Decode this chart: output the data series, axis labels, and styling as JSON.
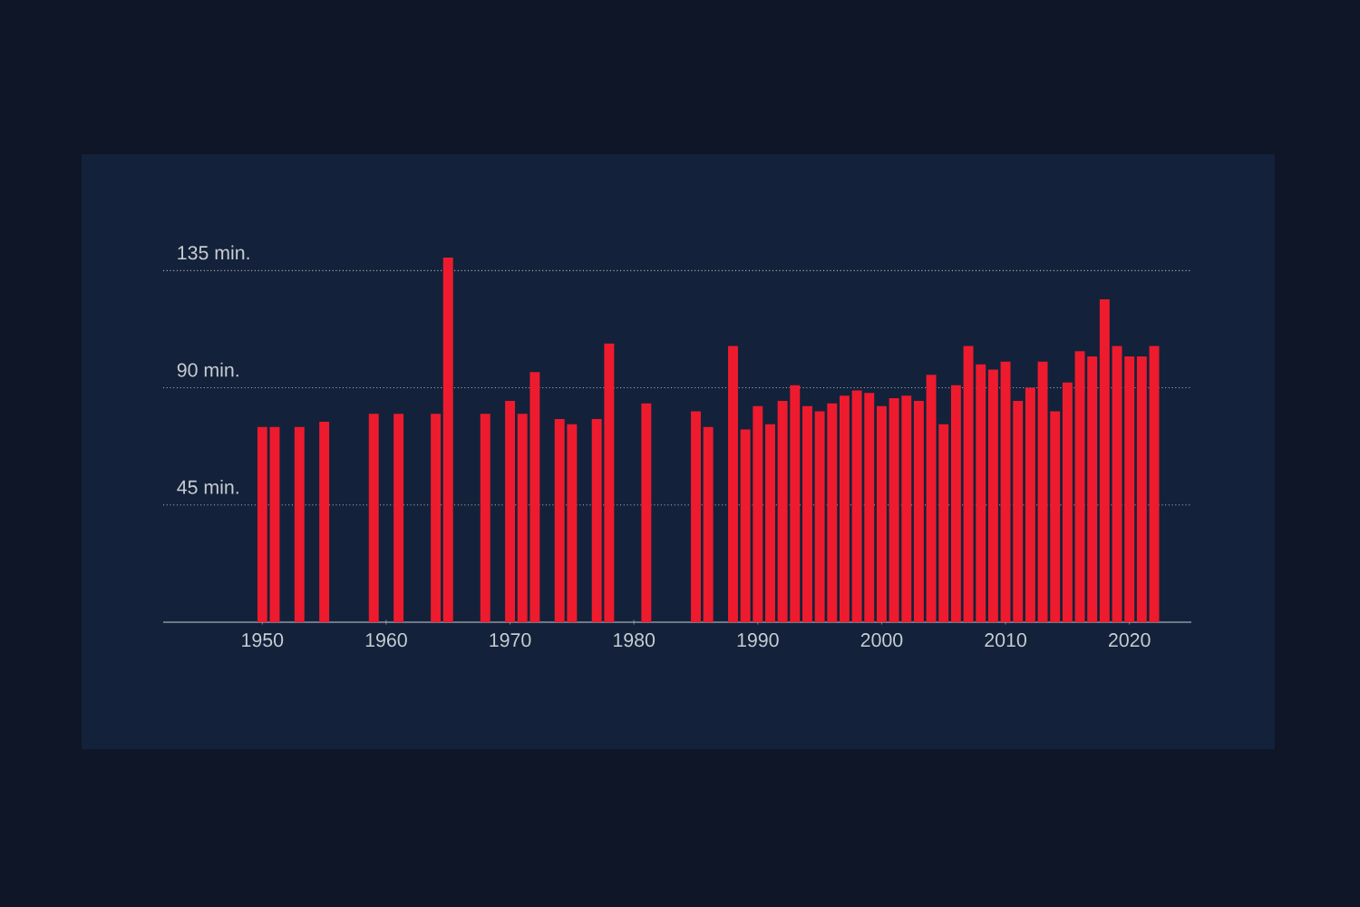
{
  "chart_data": {
    "type": "bar",
    "x": [
      1950,
      1951,
      1953,
      1955,
      1959,
      1961,
      1964,
      1965,
      1968,
      1970,
      1971,
      1972,
      1974,
      1975,
      1977,
      1978,
      1981,
      1985,
      1986,
      1988,
      1989,
      1990,
      1991,
      1992,
      1993,
      1994,
      1995,
      1996,
      1997,
      1998,
      1999,
      2000,
      2001,
      2002,
      2003,
      2004,
      2005,
      2006,
      2007,
      2008,
      2009,
      2010,
      2011,
      2012,
      2013,
      2014,
      2015,
      2016,
      2017,
      2018,
      2019,
      2020,
      2021,
      2022
    ],
    "values": [
      75,
      75,
      75,
      77,
      80,
      80,
      80,
      140,
      80,
      85,
      80,
      96,
      78,
      76,
      78,
      107,
      84,
      81,
      75,
      106,
      74,
      83,
      76,
      85,
      91,
      83,
      81,
      84,
      87,
      89,
      88,
      83,
      86,
      87,
      85,
      95,
      76,
      91,
      106,
      99,
      97,
      100,
      85,
      90,
      100,
      81,
      92,
      104,
      102,
      124,
      106,
      102,
      102,
      106
    ],
    "color": "#ee1b2e",
    "xlim": [
      1942,
      2025
    ],
    "ylim": [
      0,
      140
    ],
    "xticks": [
      1950,
      1960,
      1970,
      1980,
      1990,
      2000,
      2010,
      2020
    ],
    "yticks": [
      {
        "value": 45,
        "label": "45 min."
      },
      {
        "value": 90,
        "label": "90 min."
      },
      {
        "value": 135,
        "label": "135 min."
      }
    ],
    "grid": "y"
  }
}
